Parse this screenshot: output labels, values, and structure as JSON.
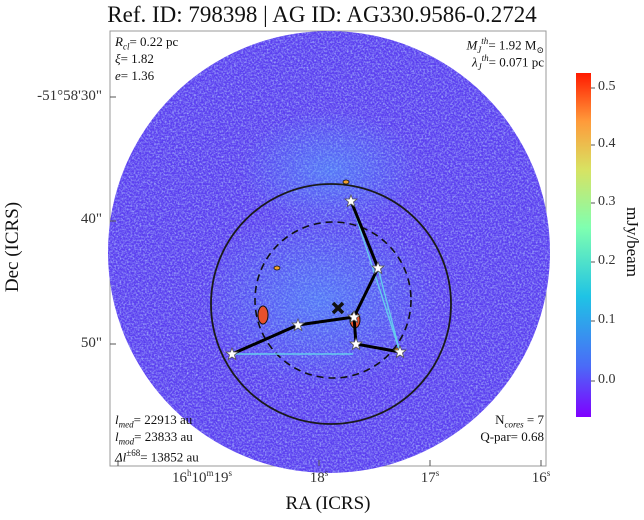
{
  "title": "Ref. ID: 798398 | AG ID: AG330.9586-0.2724",
  "x_axis_label": "RA (ICRS)",
  "y_axis_label": "Dec (ICRS)",
  "x_ticks": [
    {
      "text": "16h10m19s",
      "main": "16",
      "h": "h",
      "min": "10",
      "m": "m",
      "sec": "19",
      "s": "s"
    },
    {
      "text": "18s",
      "main": "18",
      "s": "s"
    },
    {
      "text": "17s",
      "main": "17",
      "s": "s"
    },
    {
      "text": "16s",
      "main": "16",
      "s": "s"
    }
  ],
  "y_ticks": [
    "-51°58'30\"",
    "40\"",
    "50\""
  ],
  "annotations": {
    "r_cl": {
      "sym": "R",
      "sub": "cl",
      "value": "= 0.22 pc"
    },
    "xi": {
      "sym": "ξ",
      "value": "= 1.82"
    },
    "e": {
      "sym": "e",
      "value": "= 1.36"
    },
    "mj": {
      "sym": "M",
      "sub": "J",
      "sup": "th",
      "value": "= 1.92 M",
      "unit_sym": "⊙"
    },
    "lj": {
      "sym": "λ",
      "sub": "J",
      "sup": "th",
      "value": "= 0.071 pc"
    },
    "lmed": {
      "sym": "l",
      "sub": "med",
      "value": "= 22913 au"
    },
    "lmod": {
      "sym": "l",
      "sub": "mod",
      "value": "= 23833 au"
    },
    "dl": {
      "sym": "Δl",
      "sup": "±68",
      "value": "= 13852 au"
    },
    "ncores": {
      "sym": "N",
      "sub": "cores",
      "value": " = 7"
    },
    "qpar": {
      "text": "Q-par= 0.68"
    }
  },
  "colorbar": {
    "label": "mJy/beam",
    "ticks": [
      "0.5",
      "0.4",
      "0.3",
      "0.2",
      "0.1",
      "0.0"
    ],
    "tick_values": [
      0.5,
      0.4,
      0.3,
      0.2,
      0.1,
      0.0
    ],
    "vmin": -0.05,
    "vmax": 0.52,
    "colormap": "rainbow"
  },
  "colors": {
    "field": "#5a3df0",
    "outer_circle": "#1a1a1a",
    "mst_edge": "#000000",
    "triangle_edge": "#66ccee"
  }
}
